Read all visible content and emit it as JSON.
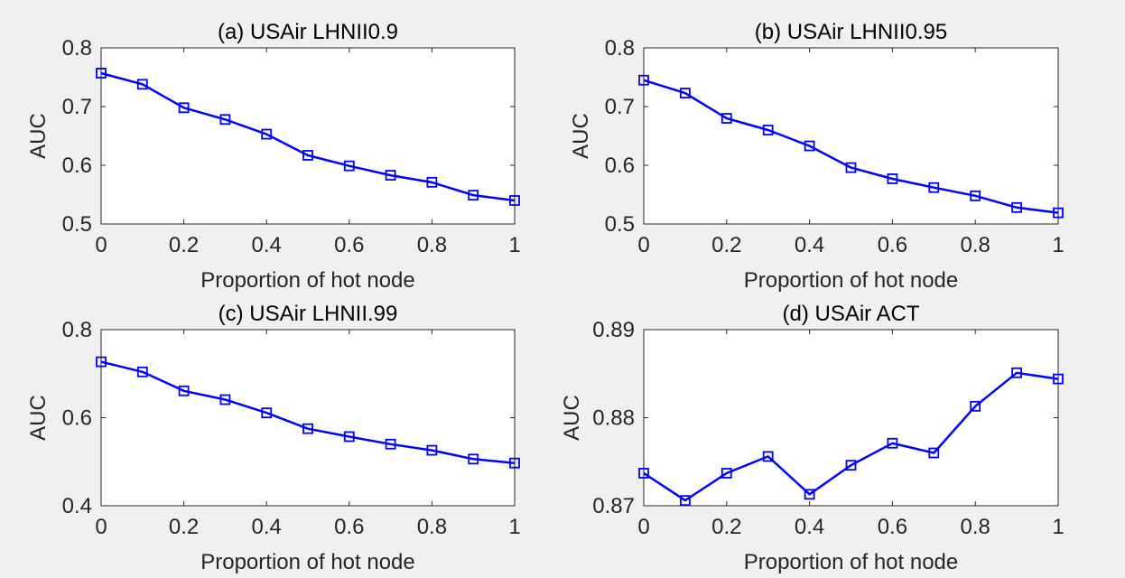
{
  "figure": {
    "background": "#f0f0f0",
    "series_color": "#0000ff",
    "marker": "square"
  },
  "chart_data": [
    {
      "type": "line",
      "title": "(a) USAir LHNII0.9",
      "xlabel": "Proportion of hot node",
      "ylabel": "AUC",
      "xlim": [
        0,
        1
      ],
      "ylim": [
        0.5,
        0.8
      ],
      "xticks": [
        0,
        0.2,
        0.4,
        0.6,
        0.8,
        1
      ],
      "xtick_labels": [
        "0",
        "0.2",
        "0.4",
        "0.6",
        "0.8",
        "1"
      ],
      "yticks": [
        0.5,
        0.6,
        0.7,
        0.8
      ],
      "ytick_labels": [
        "0.5",
        "0.6",
        "0.7",
        "0.8"
      ],
      "x": [
        0,
        0.1,
        0.2,
        0.3,
        0.4,
        0.5,
        0.6,
        0.7,
        0.8,
        0.9,
        1
      ],
      "series": [
        {
          "values": [
            0.757,
            0.738,
            0.698,
            0.678,
            0.653,
            0.617,
            0.599,
            0.583,
            0.571,
            0.549,
            0.54
          ]
        }
      ]
    },
    {
      "type": "line",
      "title": "(b) USAir LHNII0.95",
      "xlabel": "Proportion of hot node",
      "ylabel": "AUC",
      "xlim": [
        0,
        1
      ],
      "ylim": [
        0.5,
        0.8
      ],
      "xticks": [
        0,
        0.2,
        0.4,
        0.6,
        0.8,
        1
      ],
      "xtick_labels": [
        "0",
        "0.2",
        "0.4",
        "0.6",
        "0.8",
        "1"
      ],
      "yticks": [
        0.5,
        0.6,
        0.7,
        0.8
      ],
      "ytick_labels": [
        "0.5",
        "0.6",
        "0.7",
        "0.8"
      ],
      "x": [
        0,
        0.1,
        0.2,
        0.3,
        0.4,
        0.5,
        0.6,
        0.7,
        0.8,
        0.9,
        1
      ],
      "series": [
        {
          "values": [
            0.745,
            0.723,
            0.68,
            0.66,
            0.633,
            0.596,
            0.577,
            0.562,
            0.548,
            0.528,
            0.519
          ]
        }
      ]
    },
    {
      "type": "line",
      "title": "(c) USAir LHNII.99",
      "xlabel": "Proportion of hot node",
      "ylabel": "AUC",
      "xlim": [
        0,
        1
      ],
      "ylim": [
        0.4,
        0.8
      ],
      "xticks": [
        0,
        0.2,
        0.4,
        0.6,
        0.8,
        1
      ],
      "xtick_labels": [
        "0",
        "0.2",
        "0.4",
        "0.6",
        "0.8",
        "1"
      ],
      "yticks": [
        0.4,
        0.6,
        0.8
      ],
      "ytick_labels": [
        "0.4",
        "0.6",
        "0.8"
      ],
      "x": [
        0,
        0.1,
        0.2,
        0.3,
        0.4,
        0.5,
        0.6,
        0.7,
        0.8,
        0.9,
        1
      ],
      "series": [
        {
          "values": [
            0.727,
            0.704,
            0.661,
            0.641,
            0.611,
            0.575,
            0.557,
            0.54,
            0.526,
            0.506,
            0.497
          ]
        }
      ]
    },
    {
      "type": "line",
      "title": "(d) USAir ACT",
      "xlabel": "Proportion of hot node",
      "ylabel": "AUC",
      "xlim": [
        0,
        1
      ],
      "ylim": [
        0.87,
        0.89
      ],
      "xticks": [
        0,
        0.2,
        0.4,
        0.6,
        0.8,
        1
      ],
      "xtick_labels": [
        "0",
        "0.2",
        "0.4",
        "0.6",
        "0.8",
        "1"
      ],
      "yticks": [
        0.87,
        0.88,
        0.89
      ],
      "ytick_labels": [
        "0.87",
        "0.88",
        "0.89"
      ],
      "x": [
        0,
        0.1,
        0.2,
        0.3,
        0.4,
        0.5,
        0.6,
        0.7,
        0.8,
        0.9,
        1
      ],
      "series": [
        {
          "values": [
            0.8737,
            0.8706,
            0.8737,
            0.8756,
            0.8713,
            0.8746,
            0.8771,
            0.876,
            0.8813,
            0.8851,
            0.8844
          ]
        }
      ]
    }
  ]
}
